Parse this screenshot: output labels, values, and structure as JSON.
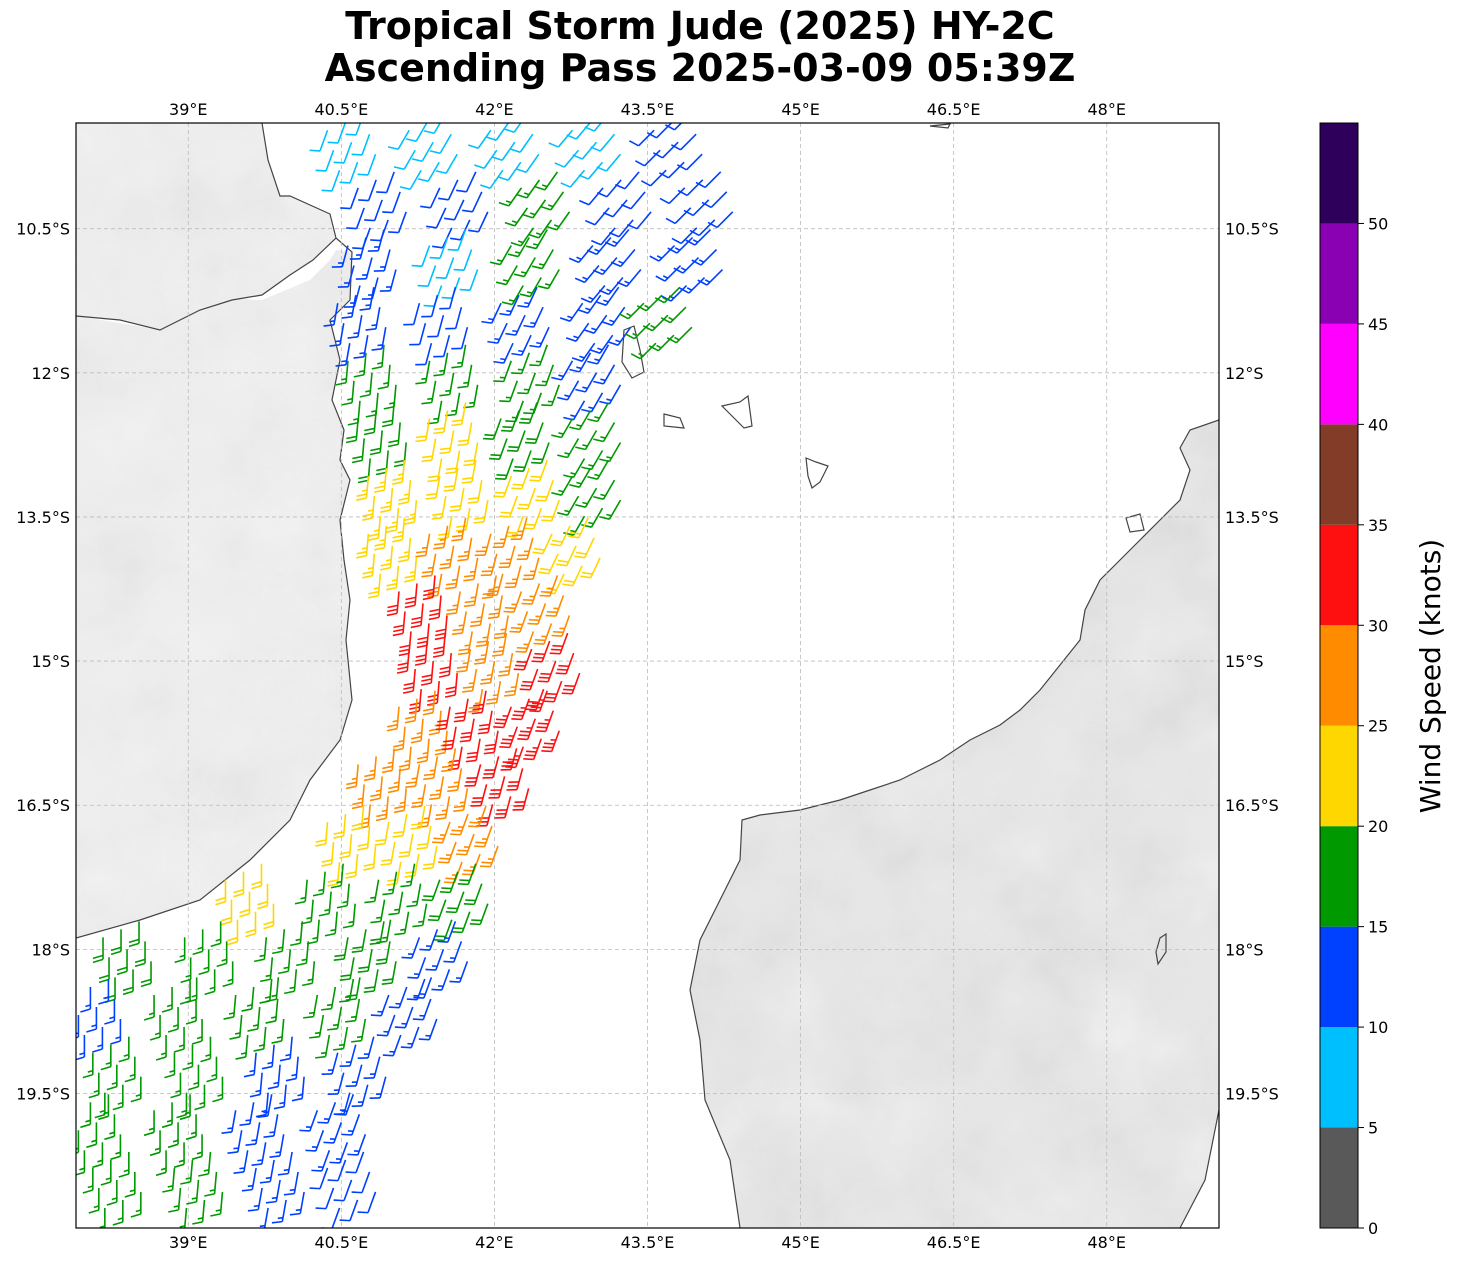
{
  "title": {
    "line1": "Tropical Storm Jude (2025) HY-2C",
    "line2": "Ascending Pass 2025-03-09 05:39Z"
  },
  "map": {
    "lon_range": [
      37.9,
      49.1
    ],
    "lat_range": [
      -20.9,
      -9.4
    ],
    "lon_ticks": [
      "39°E",
      "40.5°E",
      "42°E",
      "43.5°E",
      "45°E",
      "46.5°E",
      "48°E"
    ],
    "lon_tick_values": [
      39,
      40.5,
      42,
      43.5,
      45,
      46.5,
      48
    ],
    "lat_ticks": [
      "10.5°S",
      "12°S",
      "13.5°S",
      "15°S",
      "16.5°S",
      "18°S",
      "19.5°S"
    ],
    "lat_tick_values": [
      -10.5,
      -12,
      -13.5,
      -15,
      -16.5,
      -18,
      -19.5
    ],
    "gridlines": true,
    "background": "grayscale terrain over land, white ocean",
    "coastline_color": "#444444"
  },
  "colorbar": {
    "label": "Wind Speed (knots)",
    "ticks": [
      "0",
      "5",
      "10",
      "15",
      "20",
      "25",
      "30",
      "35",
      "40",
      "45",
      "50"
    ],
    "bins": [
      {
        "from": 0,
        "to": 5,
        "color": "#595959"
      },
      {
        "from": 5,
        "to": 10,
        "color": "#00bfff"
      },
      {
        "from": 10,
        "to": 15,
        "color": "#0040ff"
      },
      {
        "from": 15,
        "to": 20,
        "color": "#009900"
      },
      {
        "from": 20,
        "to": 25,
        "color": "#ffd700"
      },
      {
        "from": 25,
        "to": 30,
        "color": "#ff8c00"
      },
      {
        "from": 30,
        "to": 35,
        "color": "#ff1010"
      },
      {
        "from": 35,
        "to": 40,
        "color": "#823c28"
      },
      {
        "from": 40,
        "to": 45,
        "color": "#ff00ff"
      },
      {
        "from": 45,
        "to": 50,
        "color": "#8a00b3"
      },
      {
        "from": 50,
        "to": 55,
        "color": "#2e005c"
      }
    ]
  },
  "wind_barbs": {
    "units": "knots",
    "swath": "HY-2C ascending pass, swath running from about 37.9°E 21°S northeast to about 44.3°E 9.4°S",
    "max_region": {
      "lat_center": -15.2,
      "lon_center": 41.9,
      "speed_max": 35
    },
    "cells": [
      {
        "lat": -9.6,
        "lon": 40.6,
        "spd": 8,
        "dir": 200
      },
      {
        "lat": -9.6,
        "lon": 41.4,
        "spd": 8,
        "dir": 210
      },
      {
        "lat": -9.6,
        "lon": 42.2,
        "spd": 9,
        "dir": 215
      },
      {
        "lat": -9.6,
        "lon": 43.0,
        "spd": 9,
        "dir": 220
      },
      {
        "lat": -9.6,
        "lon": 43.8,
        "spd": 12,
        "dir": 225
      },
      {
        "lat": -10.2,
        "lon": 40.9,
        "spd": 12,
        "dir": 200
      },
      {
        "lat": -10.2,
        "lon": 41.7,
        "spd": 11,
        "dir": 205
      },
      {
        "lat": -10.2,
        "lon": 42.5,
        "spd": 17,
        "dir": 215
      },
      {
        "lat": -10.2,
        "lon": 43.3,
        "spd": 12,
        "dir": 220
      },
      {
        "lat": -10.2,
        "lon": 44.1,
        "spd": 12,
        "dir": 225
      },
      {
        "lat": -10.8,
        "lon": 40.8,
        "spd": 13,
        "dir": 195
      },
      {
        "lat": -10.8,
        "lon": 41.6,
        "spd": 9,
        "dir": 200
      },
      {
        "lat": -10.8,
        "lon": 42.4,
        "spd": 16,
        "dir": 210
      },
      {
        "lat": -10.8,
        "lon": 43.2,
        "spd": 13,
        "dir": 220
      },
      {
        "lat": -10.8,
        "lon": 44.0,
        "spd": 13,
        "dir": 225
      },
      {
        "lat": -11.4,
        "lon": 40.7,
        "spd": 13,
        "dir": 190
      },
      {
        "lat": -11.4,
        "lon": 41.5,
        "spd": 12,
        "dir": 195
      },
      {
        "lat": -11.4,
        "lon": 42.3,
        "spd": 13,
        "dir": 205
      },
      {
        "lat": -11.4,
        "lon": 43.1,
        "spd": 13,
        "dir": 215
      },
      {
        "lat": -11.4,
        "lon": 43.7,
        "spd": 17,
        "dir": 225
      },
      {
        "lat": -12.0,
        "lon": 40.8,
        "spd": 17,
        "dir": 185
      },
      {
        "lat": -12.0,
        "lon": 41.6,
        "spd": 17,
        "dir": 190
      },
      {
        "lat": -12.0,
        "lon": 42.4,
        "spd": 16,
        "dir": 200
      },
      {
        "lat": -12.0,
        "lon": 43.0,
        "spd": 14,
        "dir": 210
      },
      {
        "lat": -12.6,
        "lon": 40.9,
        "spd": 18,
        "dir": 185
      },
      {
        "lat": -12.6,
        "lon": 41.6,
        "spd": 21,
        "dir": 190
      },
      {
        "lat": -12.6,
        "lon": 42.3,
        "spd": 18,
        "dir": 200
      },
      {
        "lat": -12.6,
        "lon": 43.0,
        "spd": 17,
        "dir": 210
      },
      {
        "lat": -13.2,
        "lon": 41.0,
        "spd": 23,
        "dir": 185
      },
      {
        "lat": -13.2,
        "lon": 41.7,
        "spd": 22,
        "dir": 190
      },
      {
        "lat": -13.2,
        "lon": 42.4,
        "spd": 22,
        "dir": 200
      },
      {
        "lat": -13.2,
        "lon": 43.0,
        "spd": 16,
        "dir": 210
      },
      {
        "lat": -13.8,
        "lon": 41.0,
        "spd": 23,
        "dir": 185
      },
      {
        "lat": -13.8,
        "lon": 41.6,
        "spd": 27,
        "dir": 190
      },
      {
        "lat": -13.8,
        "lon": 42.2,
        "spd": 26,
        "dir": 195
      },
      {
        "lat": -13.8,
        "lon": 42.8,
        "spd": 22,
        "dir": 205
      },
      {
        "lat": -14.4,
        "lon": 41.3,
        "spd": 32,
        "dir": 185
      },
      {
        "lat": -14.4,
        "lon": 41.9,
        "spd": 27,
        "dir": 190
      },
      {
        "lat": -14.4,
        "lon": 42.5,
        "spd": 26,
        "dir": 200
      },
      {
        "lat": -15.0,
        "lon": 41.4,
        "spd": 31,
        "dir": 185
      },
      {
        "lat": -15.0,
        "lon": 42.0,
        "spd": 27,
        "dir": 190
      },
      {
        "lat": -15.0,
        "lon": 42.6,
        "spd": 32,
        "dir": 200
      },
      {
        "lat": -15.6,
        "lon": 41.3,
        "spd": 27,
        "dir": 185
      },
      {
        "lat": -15.6,
        "lon": 41.8,
        "spd": 32,
        "dir": 190
      },
      {
        "lat": -15.6,
        "lon": 42.4,
        "spd": 33,
        "dir": 200
      },
      {
        "lat": -16.2,
        "lon": 40.9,
        "spd": 26,
        "dir": 185
      },
      {
        "lat": -16.2,
        "lon": 41.5,
        "spd": 27,
        "dir": 190
      },
      {
        "lat": -16.2,
        "lon": 42.1,
        "spd": 32,
        "dir": 195
      },
      {
        "lat": -16.8,
        "lon": 40.6,
        "spd": 22,
        "dir": 185
      },
      {
        "lat": -16.8,
        "lon": 41.2,
        "spd": 22,
        "dir": 190
      },
      {
        "lat": -16.8,
        "lon": 41.8,
        "spd": 26,
        "dir": 200
      },
      {
        "lat": -17.4,
        "lon": 39.6,
        "spd": 22,
        "dir": 180
      },
      {
        "lat": -17.4,
        "lon": 40.4,
        "spd": 17,
        "dir": 185
      },
      {
        "lat": -17.4,
        "lon": 41.1,
        "spd": 17,
        "dir": 190
      },
      {
        "lat": -17.4,
        "lon": 41.7,
        "spd": 18,
        "dir": 200
      },
      {
        "lat": -18.0,
        "lon": 38.4,
        "spd": 18,
        "dir": 180
      },
      {
        "lat": -18.0,
        "lon": 39.2,
        "spd": 17,
        "dir": 180
      },
      {
        "lat": -18.0,
        "lon": 40.0,
        "spd": 17,
        "dir": 185
      },
      {
        "lat": -18.0,
        "lon": 40.8,
        "spd": 18,
        "dir": 190
      },
      {
        "lat": -18.0,
        "lon": 41.5,
        "spd": 13,
        "dir": 200
      },
      {
        "lat": -18.6,
        "lon": 38.1,
        "spd": 13,
        "dir": 180
      },
      {
        "lat": -18.6,
        "lon": 38.9,
        "spd": 17,
        "dir": 180
      },
      {
        "lat": -18.6,
        "lon": 39.7,
        "spd": 17,
        "dir": 185
      },
      {
        "lat": -18.6,
        "lon": 40.5,
        "spd": 16,
        "dir": 190
      },
      {
        "lat": -18.6,
        "lon": 41.2,
        "spd": 13,
        "dir": 200
      },
      {
        "lat": -19.2,
        "lon": 38.3,
        "spd": 17,
        "dir": 180
      },
      {
        "lat": -19.2,
        "lon": 39.1,
        "spd": 16,
        "dir": 180
      },
      {
        "lat": -19.2,
        "lon": 39.9,
        "spd": 13,
        "dir": 185
      },
      {
        "lat": -19.2,
        "lon": 40.7,
        "spd": 13,
        "dir": 195
      },
      {
        "lat": -19.8,
        "lon": 38.1,
        "spd": 17,
        "dir": 180
      },
      {
        "lat": -19.8,
        "lon": 38.9,
        "spd": 16,
        "dir": 180
      },
      {
        "lat": -19.8,
        "lon": 39.7,
        "spd": 13,
        "dir": 190
      },
      {
        "lat": -19.8,
        "lon": 40.5,
        "spd": 13,
        "dir": 200
      },
      {
        "lat": -20.4,
        "lon": 38.3,
        "spd": 17,
        "dir": 180
      },
      {
        "lat": -20.4,
        "lon": 39.1,
        "spd": 16,
        "dir": 185
      },
      {
        "lat": -20.4,
        "lon": 39.9,
        "spd": 13,
        "dir": 190
      },
      {
        "lat": -20.4,
        "lon": 40.6,
        "spd": 12,
        "dir": 200
      }
    ]
  }
}
